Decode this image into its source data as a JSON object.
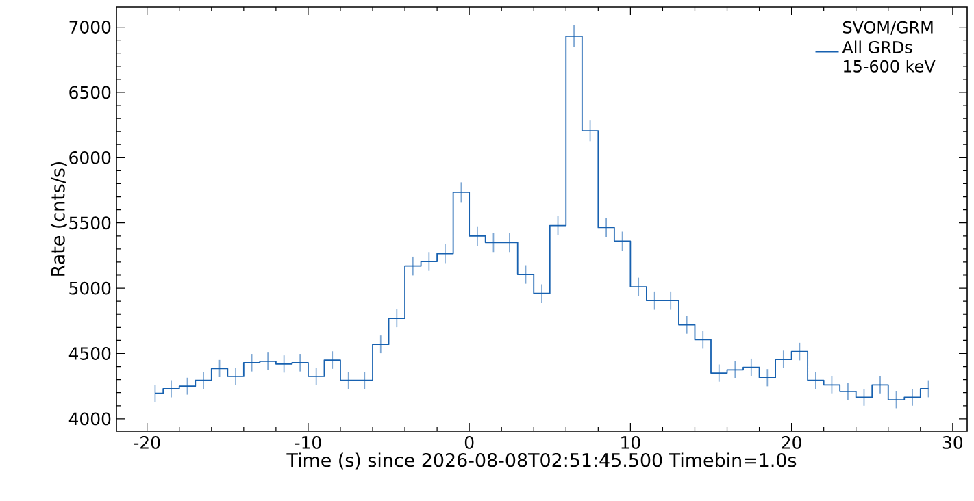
{
  "chart_data": {
    "type": "step",
    "xlabel": "Time (s) since 2026-08-08T02:51:45.500 Timebin=1.0s",
    "ylabel": "Rate (cnts/s)",
    "legend_title": "SVOM/GRM",
    "legend": "top right",
    "marker": "none",
    "xlim": [
      -21.9,
      30.9
    ],
    "ylim": [
      3905,
      7155
    ],
    "xticks": [
      -20,
      -10,
      0,
      10,
      20,
      30
    ],
    "yticks": [
      4000,
      4500,
      5000,
      5500,
      6000,
      6500,
      7000
    ],
    "series": [
      {
        "name": "All GRDs 15-600 keV",
        "color": "#1761b0",
        "x": [
          -19.5,
          -18.5,
          -17.5,
          -16.5,
          -15.5,
          -14.5,
          -13.5,
          -12.5,
          -11.5,
          -10.5,
          -9.5,
          -8.5,
          -7.5,
          -6.5,
          -5.5,
          -4.5,
          -3.5,
          -2.5,
          -1.5,
          -0.5,
          0.5,
          1.5,
          2.5,
          3.5,
          4.5,
          5.5,
          6.5,
          7.5,
          8.5,
          9.5,
          10.5,
          11.5,
          12.5,
          13.5,
          14.5,
          15.5,
          16.5,
          17.5,
          18.5,
          19.5,
          20.5,
          21.5,
          22.5,
          23.5,
          24.5,
          25.5,
          26.5,
          27.5,
          28.5
        ],
        "values": [
          4195,
          4230,
          4250,
          4295,
          4385,
          4325,
          4430,
          4440,
          4420,
          4430,
          4325,
          4450,
          4295,
          4295,
          4570,
          4770,
          5170,
          5205,
          5265,
          5735,
          5400,
          5350,
          5350,
          5105,
          4960,
          5480,
          6930,
          6205,
          5465,
          5360,
          5010,
          4905,
          4905,
          4720,
          4605,
          4350,
          4375,
          4395,
          4315,
          4455,
          4515,
          4295,
          4260,
          4210,
          4165,
          4260,
          4145,
          4165,
          4230
        ],
        "errors": [
          65,
          65,
          65,
          65,
          66,
          66,
          67,
          67,
          66,
          67,
          66,
          67,
          66,
          66,
          68,
          69,
          72,
          72,
          73,
          76,
          74,
          73,
          73,
          71,
          70,
          74,
          83,
          79,
          74,
          73,
          71,
          70,
          70,
          69,
          68,
          66,
          66,
          66,
          66,
          67,
          67,
          66,
          65,
          65,
          65,
          65,
          64,
          65,
          65
        ]
      }
    ]
  }
}
